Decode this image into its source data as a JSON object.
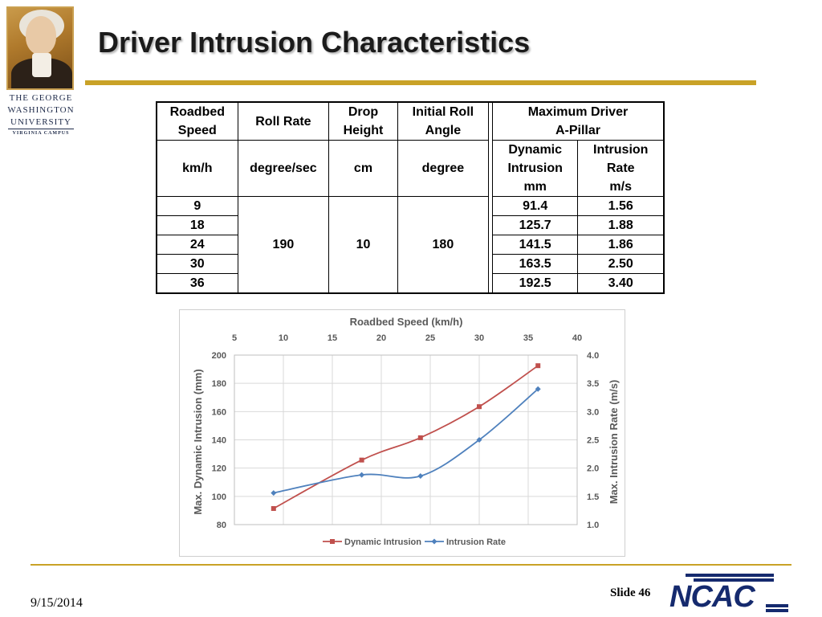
{
  "logo": {
    "line1": "THE GEORGE",
    "line2": "WASHINGTON",
    "line3": "UNIVERSITY",
    "line4": "VIRGINIA CAMPUS"
  },
  "title": "Driver Intrusion Characteristics",
  "table": {
    "header": {
      "roadbed_speed": "Roadbed Speed",
      "roll_rate": "Roll Rate",
      "drop_height": "Drop Height",
      "initial_roll_angle": "Initial Roll Angle",
      "max_driver": "Maximum Driver",
      "a_pillar": "A-Pillar"
    },
    "units": {
      "speed": "km/h",
      "roll_rate": "degree/sec",
      "drop_height": "cm",
      "roll_angle": "degree",
      "dynamic_intrusion_l1": "Dynamic",
      "dynamic_intrusion_l2": "Intrusion",
      "dynamic_intrusion_l3": "mm",
      "intrusion_rate_l1": "Intrusion",
      "intrusion_rate_l2": "Rate",
      "intrusion_rate_l3": "m/s"
    },
    "shared": {
      "roll_rate": "190",
      "drop_height": "10",
      "roll_angle": "180"
    },
    "rows": [
      {
        "speed": "9",
        "intrusion": "91.4",
        "rate": "1.56"
      },
      {
        "speed": "18",
        "intrusion": "125.7",
        "rate": "1.88"
      },
      {
        "speed": "24",
        "intrusion": "141.5",
        "rate": "1.86"
      },
      {
        "speed": "30",
        "intrusion": "163.5",
        "rate": "2.50"
      },
      {
        "speed": "36",
        "intrusion": "192.5",
        "rate": "3.40"
      }
    ]
  },
  "chart_data": {
    "type": "line",
    "xlabel": "Roadbed Speed (km/h)",
    "xlim": [
      5,
      40
    ],
    "xticks": [
      "5",
      "10",
      "15",
      "20",
      "25",
      "30",
      "35",
      "40"
    ],
    "ylabel": "Max. Dynamic Intrusion (mm)",
    "ylim": [
      80,
      200
    ],
    "yticks": [
      "80",
      "100",
      "120",
      "140",
      "160",
      "180",
      "200"
    ],
    "y2label": "Max. Intrusion Rate (m/s)",
    "y2lim": [
      1.0,
      4.0
    ],
    "y2ticks": [
      "1.0",
      "1.5",
      "2.0",
      "2.5",
      "3.0",
      "3.5",
      "4.0"
    ],
    "x": [
      9,
      18,
      24,
      30,
      36
    ],
    "series": [
      {
        "name": "Dynamic Intrusion",
        "axis": "left",
        "color": "#c0504d",
        "marker": "square",
        "values": [
          91.4,
          125.7,
          141.5,
          163.5,
          192.5
        ]
      },
      {
        "name": "Intrusion Rate",
        "axis": "right",
        "color": "#4f81bd",
        "marker": "diamond",
        "values": [
          1.56,
          1.88,
          1.86,
          2.5,
          3.4
        ]
      }
    ],
    "grid": true,
    "legend": "bottom"
  },
  "footer": {
    "date": "9/15/2014",
    "slide": "Slide 46",
    "ncac": "NCAC",
    "accent": "#c9a227"
  }
}
